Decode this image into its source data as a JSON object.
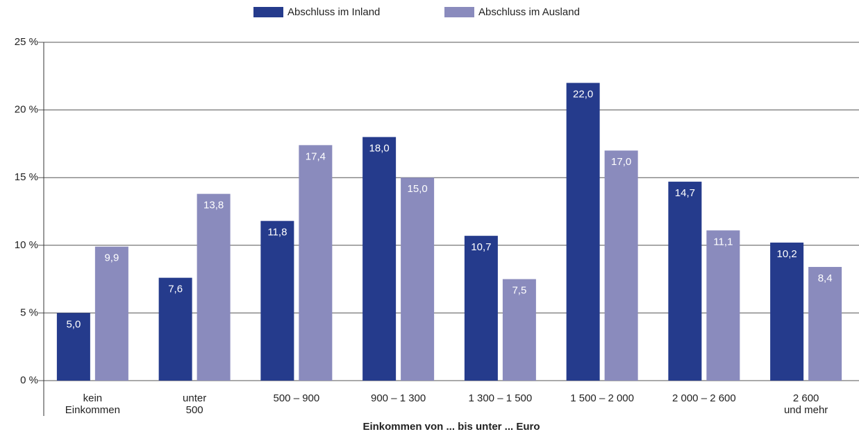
{
  "chart_data": {
    "type": "bar",
    "x_label": "Einkommen von ... bis unter ... Euro",
    "categories": [
      "kein\nEinkommen",
      "unter\n500",
      "500 – 900",
      "900 – 1 300",
      "1 300 – 1 500",
      "1 500 – 2 000",
      "2 000 – 2 600",
      "2 600\nund mehr"
    ],
    "series": [
      {
        "name": "Abschluss im Inland",
        "color": "#253b8c",
        "values": [
          5.0,
          7.6,
          11.8,
          18.0,
          10.7,
          22.0,
          14.7,
          10.2
        ],
        "value_labels": [
          "5,0",
          "7,6",
          "11,8",
          "18,0",
          "10,7",
          "22,0",
          "14,7",
          "10,2"
        ]
      },
      {
        "name": "Abschluss im Ausland",
        "color": "#8a8bbd",
        "values": [
          9.9,
          13.8,
          17.4,
          15.0,
          7.5,
          17.0,
          11.1,
          8.4
        ],
        "value_labels": [
          "9,9",
          "13,8",
          "17,4",
          "15,0",
          "7,5",
          "17,0",
          "11,1",
          "8,4"
        ]
      }
    ],
    "ylim": [
      0,
      25
    ],
    "yticks": [
      {
        "value": 0,
        "label": "0 %"
      },
      {
        "value": 5,
        "label": "5 %"
      },
      {
        "value": 10,
        "label": "10 %"
      },
      {
        "value": 15,
        "label": "15 %"
      },
      {
        "value": 20,
        "label": "20 %"
      },
      {
        "value": 25,
        "label": "25 %"
      }
    ],
    "grid": true,
    "legend": "top"
  }
}
